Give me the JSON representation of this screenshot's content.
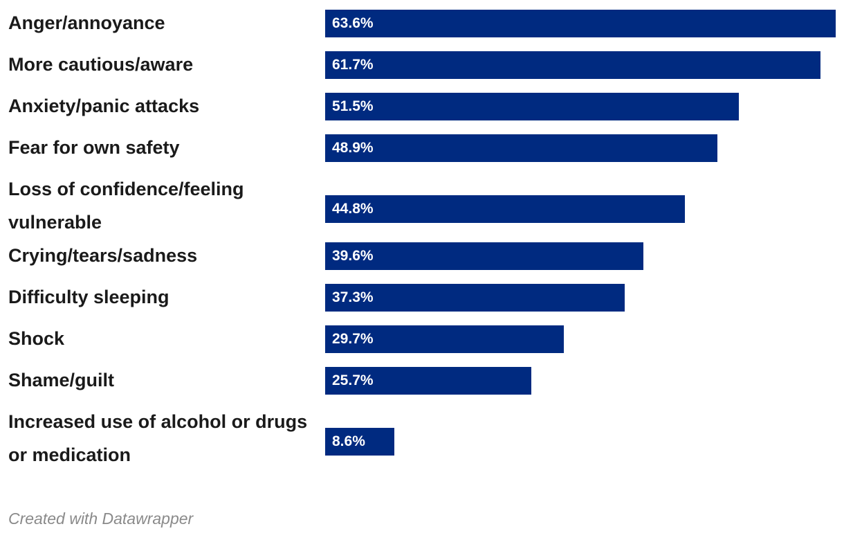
{
  "chart_data": {
    "type": "bar",
    "orientation": "horizontal",
    "categories": [
      "Anger/annoyance",
      "More cautious/aware",
      "Anxiety/panic attacks",
      "Fear for own safety",
      "Loss of confidence/feeling vulnerable",
      "Crying/tears/sadness",
      "Difficulty sleeping",
      "Shock",
      "Shame/guilt",
      "Increased use of alcohol or drugs or medication"
    ],
    "values": [
      63.6,
      61.7,
      51.5,
      48.9,
      44.8,
      39.6,
      37.3,
      29.7,
      25.7,
      8.6
    ],
    "value_labels": [
      "63.6%",
      "61.7%",
      "51.5%",
      "48.9%",
      "44.8%",
      "39.6%",
      "37.3%",
      "29.7%",
      "25.7%",
      "8.6%"
    ],
    "xlim": [
      0,
      63.6
    ],
    "title": "",
    "xlabel": "",
    "ylabel": "",
    "bar_color": "#002a80"
  },
  "footer": {
    "credit": "Created with Datawrapper"
  }
}
